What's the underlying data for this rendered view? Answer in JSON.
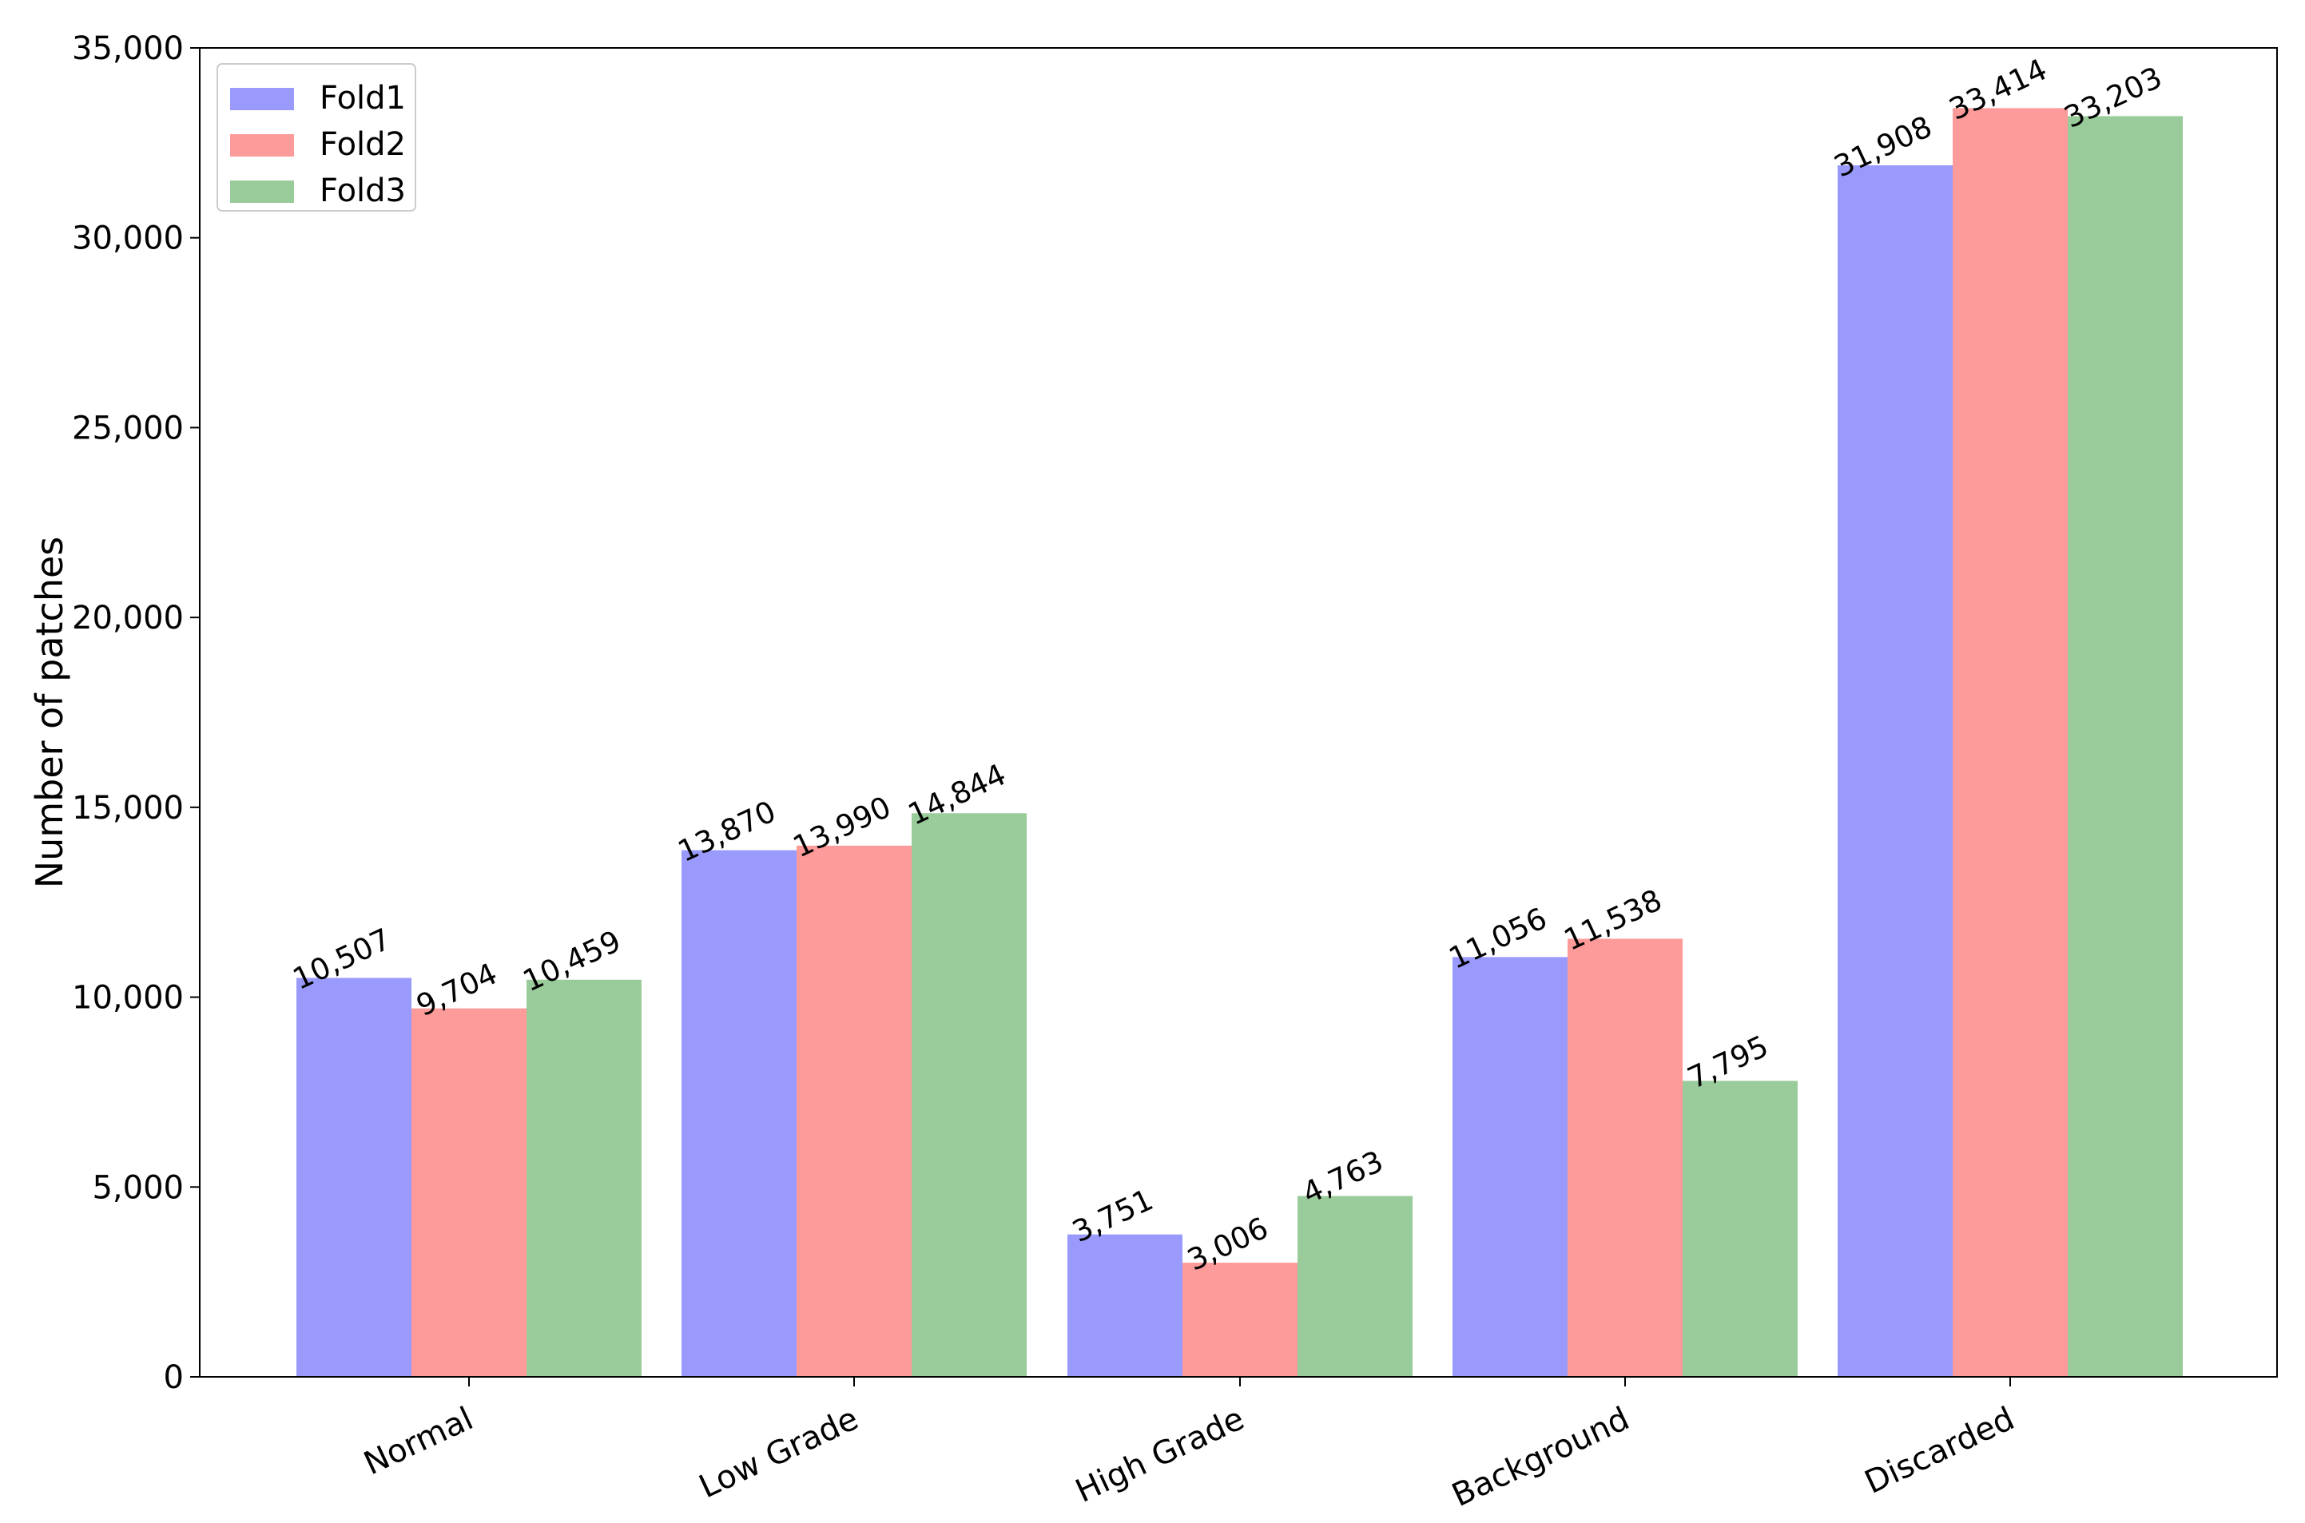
{
  "chart_data": {
    "type": "bar",
    "title": "",
    "xlabel": "",
    "ylabel": "Number of patches",
    "categories": [
      "Normal",
      "Low Grade",
      "High Grade",
      "Background",
      "Discarded"
    ],
    "ylim": [
      0,
      35000
    ],
    "yticks": [
      0,
      5000,
      10000,
      15000,
      20000,
      25000,
      30000,
      35000
    ],
    "ytick_labels": [
      "0",
      "5,000",
      "10,000",
      "15,000",
      "20,000",
      "25,000",
      "30,000",
      "35,000"
    ],
    "grid": false,
    "legend_position": "top-left",
    "series": [
      {
        "name": "Fold1",
        "color": "#9a9afd",
        "values": [
          10507,
          13870,
          3751,
          11056,
          31908
        ],
        "labels": [
          "10,507",
          "13,870",
          "3,751",
          "11,056",
          "31,908"
        ]
      },
      {
        "name": "Fold2",
        "color": "#fd9a9a",
        "values": [
          9704,
          13990,
          3006,
          11538,
          33414
        ],
        "labels": [
          "9,704",
          "13,990",
          "3,006",
          "11,538",
          "33,414"
        ]
      },
      {
        "name": "Fold3",
        "color": "#9acb9a",
        "values": [
          10459,
          14844,
          4763,
          7795,
          33203
        ],
        "labels": [
          "10,459",
          "14,844",
          "4,763",
          "7,795",
          "33,203"
        ]
      }
    ]
  }
}
